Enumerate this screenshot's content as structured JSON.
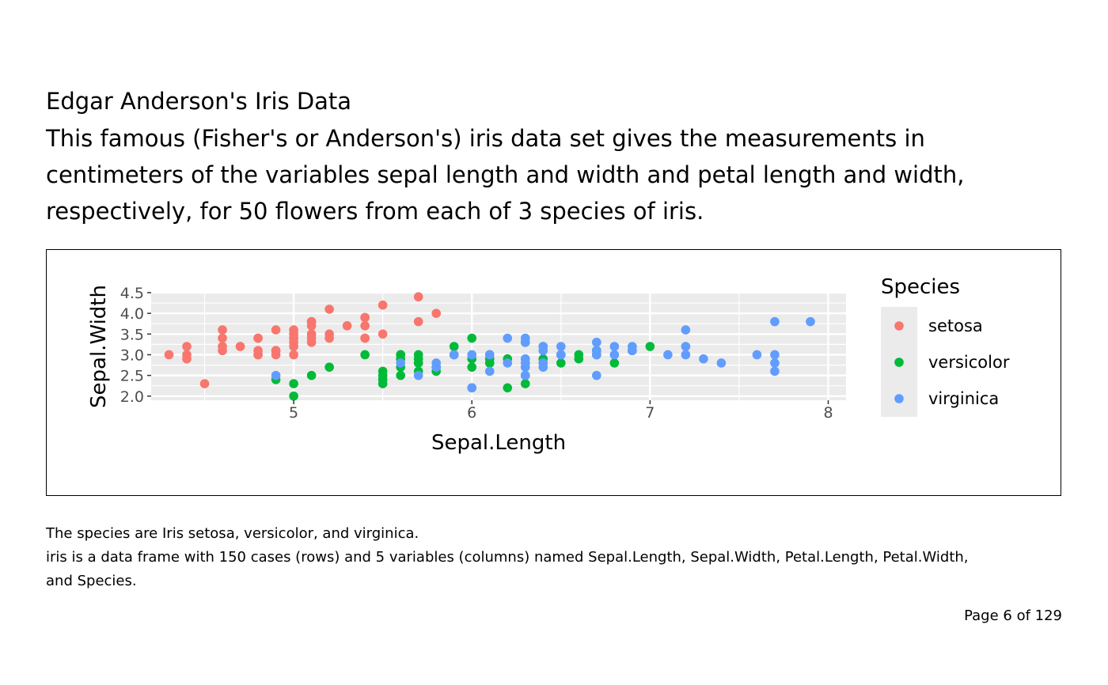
{
  "page": {
    "heading": "Edgar Anderson's Iris Data",
    "description_lines": [
      "This famous (Fisher's or Anderson's) iris data set gives the measurements in",
      "centimeters of the variables sepal length and width and petal length and width,",
      "respectively, for 50 flowers from each of 3 species of iris."
    ],
    "notes": [
      "The species are Iris setosa, versicolor, and virginica.",
      "iris is a data frame with 150 cases (rows) and 5 variables (columns) named Sepal.Length, Sepal.Width, Petal.Length, Petal.Width,",
      "and Species."
    ],
    "page_number": "Page 6 of 129"
  },
  "chart_data": {
    "type": "scatter",
    "xlabel": "Sepal.Length",
    "ylabel": "Sepal.Width",
    "xlim": [
      4.2,
      8.1
    ],
    "ylim": [
      1.9,
      4.5
    ],
    "x_ticks": [
      5,
      6,
      7,
      8
    ],
    "y_ticks": [
      2.0,
      2.5,
      3.0,
      3.5,
      4.0,
      4.5
    ],
    "y_tick_labels": [
      "2.0",
      "2.5",
      "3.0",
      "3.5",
      "4.0",
      "4.5"
    ],
    "grid": true,
    "legend": {
      "title": "Species",
      "position": "right"
    },
    "series": [
      {
        "name": "setosa",
        "color": "#F8766D",
        "points": [
          [
            5.1,
            3.5
          ],
          [
            4.9,
            3.0
          ],
          [
            4.7,
            3.2
          ],
          [
            4.6,
            3.1
          ],
          [
            5.0,
            3.6
          ],
          [
            5.4,
            3.9
          ],
          [
            4.6,
            3.4
          ],
          [
            5.0,
            3.4
          ],
          [
            4.4,
            2.9
          ],
          [
            4.9,
            3.1
          ],
          [
            5.4,
            3.7
          ],
          [
            4.8,
            3.4
          ],
          [
            4.8,
            3.0
          ],
          [
            4.3,
            3.0
          ],
          [
            5.8,
            4.0
          ],
          [
            5.7,
            4.4
          ],
          [
            5.4,
            3.9
          ],
          [
            5.1,
            3.5
          ],
          [
            5.7,
            3.8
          ],
          [
            5.1,
            3.8
          ],
          [
            5.4,
            3.4
          ],
          [
            5.1,
            3.7
          ],
          [
            4.6,
            3.6
          ],
          [
            5.1,
            3.3
          ],
          [
            4.8,
            3.4
          ],
          [
            5.0,
            3.0
          ],
          [
            5.0,
            3.4
          ],
          [
            5.2,
            3.5
          ],
          [
            5.2,
            3.4
          ],
          [
            4.7,
            3.2
          ],
          [
            4.8,
            3.1
          ],
          [
            5.4,
            3.4
          ],
          [
            5.2,
            4.1
          ],
          [
            5.5,
            4.2
          ],
          [
            4.9,
            3.1
          ],
          [
            5.0,
            3.2
          ],
          [
            5.5,
            3.5
          ],
          [
            4.9,
            3.6
          ],
          [
            4.4,
            3.0
          ],
          [
            5.1,
            3.4
          ],
          [
            5.0,
            3.5
          ],
          [
            4.5,
            2.3
          ],
          [
            4.4,
            3.2
          ],
          [
            5.0,
            3.5
          ],
          [
            5.1,
            3.8
          ],
          [
            4.8,
            3.0
          ],
          [
            5.1,
            3.8
          ],
          [
            4.6,
            3.2
          ],
          [
            5.3,
            3.7
          ],
          [
            5.0,
            3.3
          ]
        ]
      },
      {
        "name": "versicolor",
        "color": "#00BA38",
        "points": [
          [
            7.0,
            3.2
          ],
          [
            6.4,
            3.2
          ],
          [
            6.9,
            3.1
          ],
          [
            5.5,
            2.3
          ],
          [
            6.5,
            2.8
          ],
          [
            5.7,
            2.8
          ],
          [
            6.3,
            3.3
          ],
          [
            4.9,
            2.4
          ],
          [
            6.6,
            2.9
          ],
          [
            5.2,
            2.7
          ],
          [
            5.0,
            2.0
          ],
          [
            5.9,
            3.0
          ],
          [
            6.0,
            2.2
          ],
          [
            6.1,
            2.9
          ],
          [
            5.6,
            2.9
          ],
          [
            6.7,
            3.1
          ],
          [
            5.6,
            3.0
          ],
          [
            5.8,
            2.7
          ],
          [
            6.2,
            2.2
          ],
          [
            5.6,
            2.5
          ],
          [
            5.9,
            3.2
          ],
          [
            6.1,
            2.8
          ],
          [
            6.3,
            2.5
          ],
          [
            6.1,
            2.8
          ],
          [
            6.4,
            2.9
          ],
          [
            6.6,
            3.0
          ],
          [
            6.8,
            2.8
          ],
          [
            6.7,
            3.0
          ],
          [
            6.0,
            2.9
          ],
          [
            5.7,
            2.6
          ],
          [
            5.5,
            2.4
          ],
          [
            5.5,
            2.4
          ],
          [
            5.8,
            2.7
          ],
          [
            6.0,
            2.7
          ],
          [
            5.4,
            3.0
          ],
          [
            6.0,
            3.4
          ],
          [
            6.7,
            3.1
          ],
          [
            6.3,
            2.3
          ],
          [
            5.6,
            3.0
          ],
          [
            5.5,
            2.5
          ],
          [
            5.5,
            2.6
          ],
          [
            6.1,
            3.0
          ],
          [
            5.8,
            2.6
          ],
          [
            5.0,
            2.3
          ],
          [
            5.6,
            2.7
          ],
          [
            5.7,
            3.0
          ],
          [
            5.7,
            2.9
          ],
          [
            6.2,
            2.9
          ],
          [
            5.1,
            2.5
          ],
          [
            5.7,
            2.8
          ]
        ]
      },
      {
        "name": "virginica",
        "color": "#619CFF",
        "points": [
          [
            6.3,
            3.3
          ],
          [
            5.8,
            2.7
          ],
          [
            7.1,
            3.0
          ],
          [
            6.3,
            2.9
          ],
          [
            6.5,
            3.0
          ],
          [
            7.6,
            3.0
          ],
          [
            4.9,
            2.5
          ],
          [
            7.3,
            2.9
          ],
          [
            6.7,
            2.5
          ],
          [
            7.2,
            3.6
          ],
          [
            6.5,
            3.2
          ],
          [
            6.4,
            2.7
          ],
          [
            6.8,
            3.0
          ],
          [
            5.7,
            2.5
          ],
          [
            5.8,
            2.8
          ],
          [
            6.4,
            3.2
          ],
          [
            6.5,
            3.0
          ],
          [
            7.7,
            3.8
          ],
          [
            7.7,
            2.6
          ],
          [
            6.0,
            2.2
          ],
          [
            6.9,
            3.2
          ],
          [
            5.6,
            2.8
          ],
          [
            7.7,
            2.8
          ],
          [
            6.3,
            2.7
          ],
          [
            6.7,
            3.3
          ],
          [
            7.2,
            3.2
          ],
          [
            6.2,
            2.8
          ],
          [
            6.1,
            3.0
          ],
          [
            6.4,
            2.8
          ],
          [
            7.2,
            3.0
          ],
          [
            7.4,
            2.8
          ],
          [
            7.9,
            3.8
          ],
          [
            6.4,
            2.8
          ],
          [
            6.3,
            2.8
          ],
          [
            6.1,
            2.6
          ],
          [
            7.7,
            3.0
          ],
          [
            6.3,
            3.4
          ],
          [
            6.4,
            3.1
          ],
          [
            6.0,
            3.0
          ],
          [
            6.9,
            3.1
          ],
          [
            6.7,
            3.1
          ],
          [
            6.9,
            3.1
          ],
          [
            5.8,
            2.7
          ],
          [
            6.8,
            3.2
          ],
          [
            6.7,
            3.3
          ],
          [
            6.7,
            3.0
          ],
          [
            6.3,
            2.5
          ],
          [
            6.5,
            3.0
          ],
          [
            6.2,
            3.4
          ],
          [
            5.9,
            3.0
          ]
        ]
      }
    ]
  }
}
